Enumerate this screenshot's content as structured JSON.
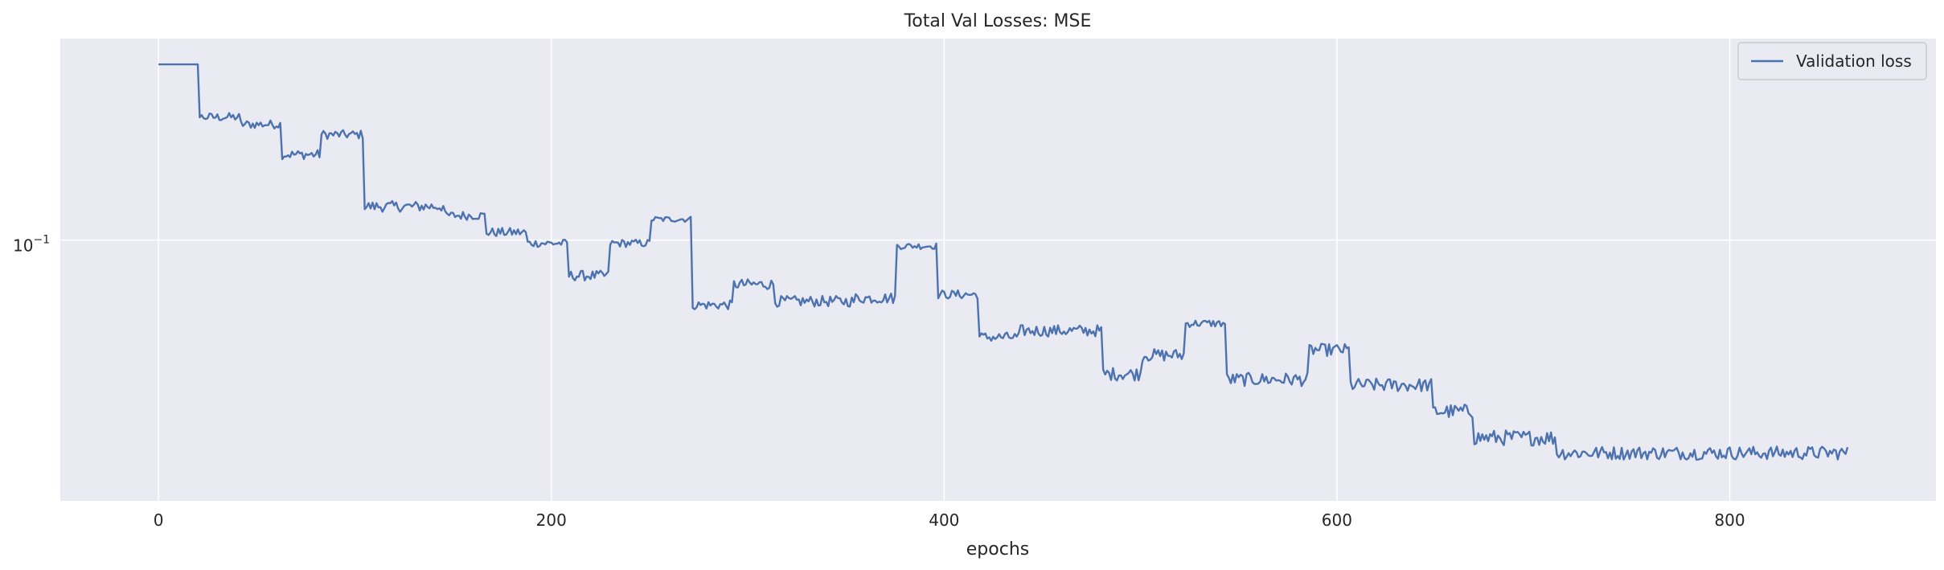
{
  "chart_data": {
    "type": "line",
    "title": "Total Val Losses:  MSE",
    "xlabel": "epochs",
    "ylabel": "",
    "yscale": "log",
    "xlim": [
      -50,
      905
    ],
    "ylim": [
      0.0513,
      0.1675
    ],
    "grid": true,
    "legend_placement": "top-right",
    "x_ticks": [
      0,
      200,
      400,
      600,
      800
    ],
    "x_tick_labels": [
      "0",
      "200",
      "400",
      "600",
      "800"
    ],
    "y_tick_value": 0.1,
    "y_tick_label_base": "10",
    "y_tick_label_exp": "−1",
    "colors": {
      "line": "#4c72b0",
      "background": "#eaeaf2",
      "grid": "#ffffff"
    },
    "series": [
      {
        "name": "Validation loss",
        "segments": [
          {
            "start": 0,
            "end": 20,
            "value": 0.1568,
            "noise": 0.0
          },
          {
            "start": 21,
            "end": 41,
            "value": 0.137,
            "noise": 0.0015
          },
          {
            "start": 42,
            "end": 62,
            "value": 0.1345,
            "noise": 0.0015
          },
          {
            "start": 63,
            "end": 82,
            "value": 0.1245,
            "noise": 0.0015
          },
          {
            "start": 83,
            "end": 104,
            "value": 0.131,
            "noise": 0.0015
          },
          {
            "start": 105,
            "end": 145,
            "value": 0.109,
            "noise": 0.0015
          },
          {
            "start": 146,
            "end": 166,
            "value": 0.1065,
            "noise": 0.0012
          },
          {
            "start": 167,
            "end": 187,
            "value": 0.102,
            "noise": 0.0012
          },
          {
            "start": 188,
            "end": 208,
            "value": 0.0992,
            "noise": 0.001
          },
          {
            "start": 209,
            "end": 229,
            "value": 0.0913,
            "noise": 0.0012
          },
          {
            "start": 230,
            "end": 250,
            "value": 0.0992,
            "noise": 0.001
          },
          {
            "start": 251,
            "end": 271,
            "value": 0.1055,
            "noise": 0.0008
          },
          {
            "start": 272,
            "end": 292,
            "value": 0.0847,
            "noise": 0.001
          },
          {
            "start": 293,
            "end": 313,
            "value": 0.0893,
            "noise": 0.0012
          },
          {
            "start": 314,
            "end": 354,
            "value": 0.0855,
            "noise": 0.0012
          },
          {
            "start": 355,
            "end": 375,
            "value": 0.0862,
            "noise": 0.0012
          },
          {
            "start": 376,
            "end": 396,
            "value": 0.0985,
            "noise": 0.0008
          },
          {
            "start": 397,
            "end": 417,
            "value": 0.087,
            "noise": 0.001
          },
          {
            "start": 418,
            "end": 438,
            "value": 0.078,
            "noise": 0.001
          },
          {
            "start": 439,
            "end": 480,
            "value": 0.0793,
            "noise": 0.0012
          },
          {
            "start": 481,
            "end": 500,
            "value": 0.071,
            "noise": 0.0012
          },
          {
            "start": 501,
            "end": 522,
            "value": 0.0745,
            "noise": 0.0012
          },
          {
            "start": 523,
            "end": 543,
            "value": 0.0808,
            "noise": 0.0008
          },
          {
            "start": 544,
            "end": 585,
            "value": 0.07,
            "noise": 0.0012
          },
          {
            "start": 586,
            "end": 606,
            "value": 0.0755,
            "noise": 0.0012
          },
          {
            "start": 607,
            "end": 648,
            "value": 0.069,
            "noise": 0.0012
          },
          {
            "start": 649,
            "end": 669,
            "value": 0.0645,
            "noise": 0.0012
          },
          {
            "start": 670,
            "end": 711,
            "value": 0.0603,
            "noise": 0.0012
          },
          {
            "start": 712,
            "end": 860,
            "value": 0.058,
            "noise": 0.001
          }
        ]
      }
    ]
  }
}
